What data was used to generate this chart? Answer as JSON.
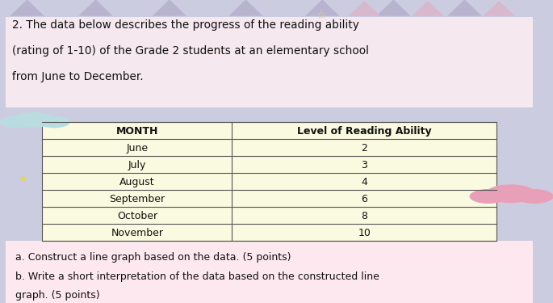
{
  "title_text_line1": "2. The data below describes the progress of the reading ability",
  "title_text_line2": "(rating of 1-10) of the Grade 2 students at an elementary school",
  "title_text_line3": "from June to December.",
  "col_headers": [
    "MONTH",
    "Level of Reading Ability"
  ],
  "months": [
    "June",
    "July",
    "August",
    "September",
    "October",
    "November"
  ],
  "values": [
    "2",
    "3",
    "4",
    "6",
    "8",
    "10"
  ],
  "footer_lines": [
    "a. Construct a line graph based on the data. (5 points)",
    "b. Write a short interpretation of the data based on the constructed line",
    "graph. (5 points)"
  ],
  "bg_lavender": "#cccce0",
  "bg_pink_title": "#f5e8ee",
  "bg_yellow_table": "#fafae0",
  "bg_pink_footer": "#fce8ee",
  "table_border": "#555555",
  "text_color": "#111111",
  "cat_ear_color": "#b8b4d0",
  "cat_ear_color2": "#d8b8cc",
  "star_color": "#e8d840",
  "cloud_pink": "#e8a0b8",
  "cloud_blue": "#a8cce8"
}
